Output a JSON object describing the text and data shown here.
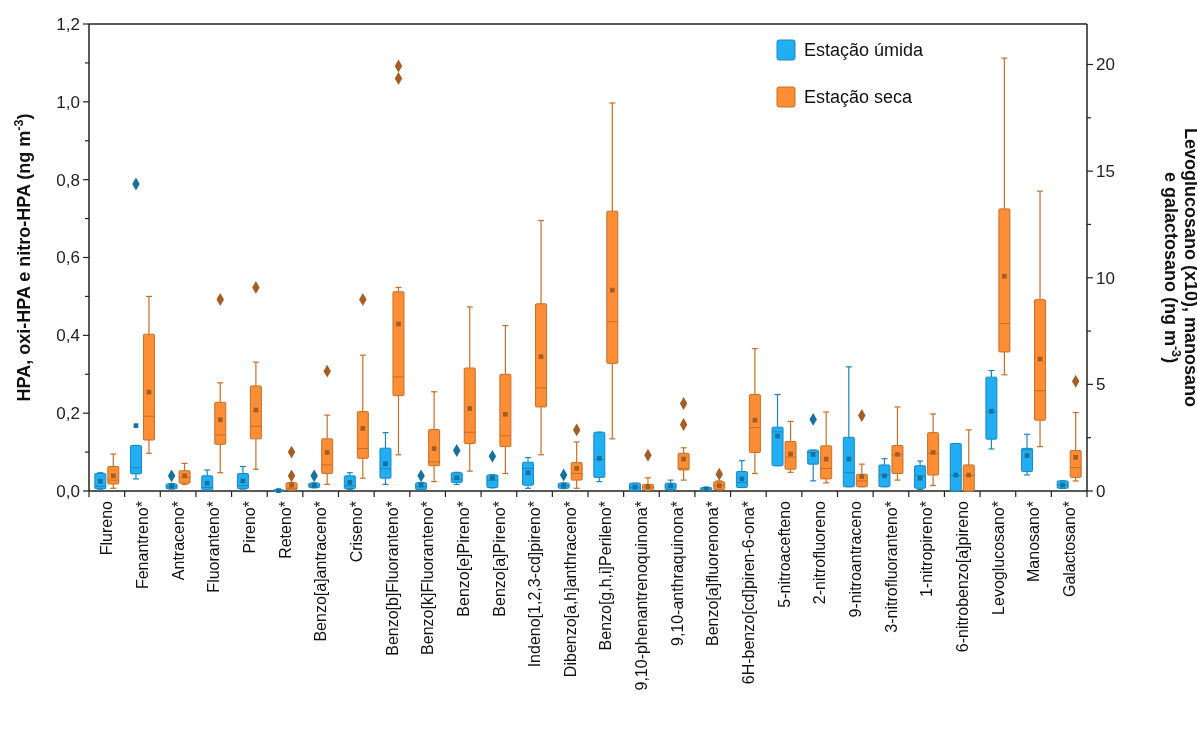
{
  "chart_data": {
    "type": "box",
    "ylabel": "HPA, oxi-HPA e nitro-HPA (ng m$^{-3}$)",
    "y2label": "Levoglucosano (x10), manosano e galactosano (ng m$^{-3}$)",
    "categories": [
      "Flureno",
      "Fenantreno*",
      "Antraceno*",
      "Fluoranteno*",
      "Pireno*",
      "Reteno*",
      "Benzo[a]antraceno*",
      "Criseno*",
      "Benzo[b]Fluoranteno*",
      "Benzo[k]Fluoranteno*",
      "Benzo[e]Pireno*",
      "Benzo[a]Pireno*",
      "Indeno[1,2,3-cd]pireno*",
      "Dibenzo[a,h]anthraceno*",
      "Benzo[g,h,i]Perileno*",
      "9,10-phenantrenoquinona*",
      "9,10-anthraquinona*",
      "Benzo[a]fluorenona*",
      "6H-benzo[cd]piren-6-ona*",
      "5-nitroacefteno",
      "2-nitrofluoreno",
      "9-nitroantraceno",
      "3-nitrofluoranteno*",
      "1-nitropireno*",
      "6-nitrobenzo[a]pireno",
      "Levoglucosano*",
      "Manosano*",
      "Galactosano*"
    ],
    "ylim": [
      0,
      1.2
    ],
    "yticks": [
      {
        "value": 0,
        "label": "0,0"
      },
      {
        "value": 0.1,
        "label": null
      },
      {
        "value": 0.2,
        "label": "0,2"
      },
      {
        "value": 0.3,
        "label": null
      },
      {
        "value": 0.4,
        "label": "0,4"
      },
      {
        "value": 0.5,
        "label": null
      },
      {
        "value": 0.6,
        "label": "0,6"
      },
      {
        "value": 0.7,
        "label": null
      },
      {
        "value": 0.8,
        "label": "0,8"
      },
      {
        "value": 0.9,
        "label": null
      },
      {
        "value": 1.0,
        "label": "1,0"
      },
      {
        "value": 1.1,
        "label": null
      },
      {
        "value": 1.2,
        "label": "1,2"
      }
    ],
    "y2lim": [
      0,
      21.9
    ],
    "y2ticks": [
      0,
      {
        "value": 2.5,
        "label": null
      },
      5,
      {
        "value": 7.5,
        "label": null
      },
      10,
      {
        "value": 12.5,
        "label": null
      },
      15,
      {
        "value": 17.5,
        "label": null
      },
      20
    ],
    "legend": "top right",
    "marker": "square",
    "series": [
      {
        "name": "Estação úmida",
        "color": "#22aef2",
        "boxes": [
          {
            "low": 0.003,
            "q1": 0.006,
            "median": 0.012,
            "q3": 0.045,
            "high": 0.047,
            "mean": 0.025
          },
          {
            "low": 0.031,
            "q1": 0.044,
            "median": 0.06,
            "q3": 0.117,
            "high": 0.117,
            "mean": 0.168,
            "outliers": [
              0.789
            ]
          },
          {
            "low": 0.005,
            "q1": 0.006,
            "median": 0.011,
            "q3": 0.018,
            "high": 0.019,
            "mean": 0.013,
            "outliers": [
              0.039
            ]
          },
          {
            "low": 0.002,
            "q1": 0.003,
            "median": 0.009,
            "q3": 0.039,
            "high": 0.054,
            "mean": 0.02
          },
          {
            "low": 0.005,
            "q1": 0.006,
            "median": 0.014,
            "q3": 0.045,
            "high": 0.063,
            "mean": 0.026
          },
          {
            "low": 0,
            "q1": 0,
            "median": 0.001,
            "q3": 0.003,
            "high": 0.004,
            "mean": 0.001
          },
          {
            "low": 0.008,
            "q1": 0.009,
            "median": 0.014,
            "q3": 0.02,
            "high": 0.021,
            "mean": 0.014,
            "outliers": [
              0.039
            ]
          },
          {
            "low": 0.004,
            "q1": 0.006,
            "median": 0.013,
            "q3": 0.039,
            "high": 0.047,
            "mean": 0.022
          },
          {
            "low": 0.017,
            "q1": 0.033,
            "median": 0.057,
            "q3": 0.11,
            "high": 0.15,
            "mean": 0.07
          },
          {
            "low": 0.003,
            "q1": 0.004,
            "median": 0.011,
            "q3": 0.021,
            "high": 0.022,
            "mean": 0.015,
            "outliers": [
              0.039
            ]
          },
          {
            "low": 0.017,
            "q1": 0.022,
            "median": 0.031,
            "q3": 0.047,
            "high": 0.048,
            "mean": 0.034,
            "outliers": [
              0.104
            ]
          },
          {
            "low": 0.008,
            "q1": 0.009,
            "median": 0.028,
            "q3": 0.041,
            "high": 0.042,
            "mean": 0.033,
            "outliers": [
              0.089
            ]
          },
          {
            "low": 0.007,
            "q1": 0.015,
            "median": 0.058,
            "q3": 0.074,
            "high": 0.086,
            "mean": 0.047
          },
          {
            "low": 0.006,
            "q1": 0.007,
            "median": 0.014,
            "q3": 0.02,
            "high": 0.021,
            "mean": 0.014,
            "outliers": [
              0.041
            ]
          },
          {
            "low": 0.024,
            "q1": 0.035,
            "median": 0.081,
            "q3": 0.151,
            "high": 0.151,
            "mean": 0.084
          },
          {
            "low": 0,
            "q1": 0.001,
            "median": 0.01,
            "q3": 0.02,
            "high": 0.02,
            "mean": 0.01
          },
          {
            "low": 0.002,
            "q1": 0.004,
            "median": 0.011,
            "q3": 0.02,
            "high": 0.028,
            "mean": 0.013
          },
          {
            "low": 0.001,
            "q1": 0.001,
            "median": 0.005,
            "q3": 0.009,
            "high": 0.01,
            "mean": 0.005
          },
          {
            "low": 0.009,
            "q1": 0.009,
            "median": 0.022,
            "q3": 0.05,
            "high": 0.078,
            "mean": 0.031
          },
          {
            "low": 0.065,
            "q1": 0.065,
            "median": 0.152,
            "q3": 0.164,
            "high": 0.248,
            "mean": 0.141
          },
          {
            "low": 0.026,
            "q1": 0.069,
            "median": 0.099,
            "q3": 0.105,
            "high": 0.105,
            "mean": 0.094,
            "outliers": [
              0.184
            ]
          },
          {
            "low": 0.011,
            "q1": 0.011,
            "median": 0.047,
            "q3": 0.138,
            "high": 0.319,
            "mean": 0.082
          },
          {
            "low": 0.011,
            "q1": 0.011,
            "median": 0.041,
            "q3": 0.067,
            "high": 0.083,
            "mean": 0.039
          },
          {
            "low": 0.004,
            "q1": 0.007,
            "median": 0.039,
            "q3": 0.065,
            "high": 0.077,
            "mean": 0.033
          },
          {
            "low": 0,
            "q1": 0,
            "median": 0.04,
            "q3": 0.122,
            "high": 0.122,
            "mean": 0.041
          },
          null,
          null,
          null
        ]
      },
      {
        "name": "Estação seca",
        "color": "#fd8e35",
        "boxes": [
          {
            "low": 0.007,
            "q1": 0.018,
            "median": 0.028,
            "q3": 0.063,
            "high": 0.095,
            "mean": 0.039
          },
          {
            "low": 0.097,
            "q1": 0.131,
            "median": 0.192,
            "q3": 0.403,
            "high": 0.5,
            "mean": 0.254
          },
          {
            "low": 0.017,
            "q1": 0.02,
            "median": 0.035,
            "q3": 0.052,
            "high": 0.071,
            "mean": 0.039
          },
          {
            "low": 0.047,
            "q1": 0.12,
            "median": 0.144,
            "q3": 0.228,
            "high": 0.278,
            "mean": 0.183,
            "outliers": [
              0.492
            ]
          },
          {
            "low": 0.056,
            "q1": 0.134,
            "median": 0.166,
            "q3": 0.27,
            "high": 0.331,
            "mean": 0.208,
            "outliers": [
              0.523
            ]
          },
          {
            "low": 0.001,
            "q1": 0.003,
            "median": 0.007,
            "q3": 0.021,
            "high": 0.022,
            "mean": 0.015,
            "outliers": [
              0.039,
              0.1
            ]
          },
          {
            "low": 0.017,
            "q1": 0.045,
            "median": 0.067,
            "q3": 0.134,
            "high": 0.195,
            "mean": 0.099,
            "outliers": [
              0.308
            ]
          },
          {
            "low": 0.033,
            "q1": 0.084,
            "median": 0.109,
            "q3": 0.204,
            "high": 0.349,
            "mean": 0.161,
            "outliers": [
              0.492
            ]
          },
          {
            "low": 0.093,
            "q1": 0.245,
            "median": 0.293,
            "q3": 0.512,
            "high": 0.523,
            "mean": 0.429,
            "outliers": [
              1.06,
              1.092
            ]
          },
          {
            "low": 0.024,
            "q1": 0.065,
            "median": 0.075,
            "q3": 0.158,
            "high": 0.255,
            "mean": 0.109
          },
          {
            "low": 0.051,
            "q1": 0.122,
            "median": 0.151,
            "q3": 0.316,
            "high": 0.473,
            "mean": 0.212
          },
          {
            "low": 0.045,
            "q1": 0.114,
            "median": 0.142,
            "q3": 0.3,
            "high": 0.425,
            "mean": 0.197
          },
          {
            "low": 0.093,
            "q1": 0.216,
            "median": 0.265,
            "q3": 0.481,
            "high": 0.695,
            "mean": 0.345
          },
          {
            "low": 0.007,
            "q1": 0.028,
            "median": 0.045,
            "q3": 0.073,
            "high": 0.126,
            "mean": 0.058,
            "outliers": [
              0.157
            ]
          },
          {
            "low": 0.134,
            "q1": 0.328,
            "median": 0.435,
            "q3": 0.719,
            "high": 0.997,
            "mean": 0.516
          },
          {
            "low": 0.001,
            "q1": 0.003,
            "median": 0.01,
            "q3": 0.017,
            "high": 0.034,
            "mean": 0.011,
            "outliers": [
              0.092
            ]
          },
          {
            "low": 0.028,
            "q1": 0.054,
            "median": 0.058,
            "q3": 0.097,
            "high": 0.111,
            "mean": 0.082,
            "outliers": [
              0.171,
              0.225
            ]
          },
          {
            "low": 0.002,
            "q1": 0.004,
            "median": 0.014,
            "q3": 0.024,
            "high": 0.026,
            "mean": 0.014,
            "outliers": [
              0.043
            ]
          },
          {
            "low": 0.045,
            "q1": 0.099,
            "median": 0.163,
            "q3": 0.248,
            "high": 0.366,
            "mean": 0.182
          },
          {
            "low": 0.048,
            "q1": 0.056,
            "median": 0.087,
            "q3": 0.127,
            "high": 0.179,
            "mean": 0.095
          },
          {
            "low": 0.021,
            "q1": 0.031,
            "median": 0.058,
            "q3": 0.116,
            "high": 0.203,
            "mean": 0.082
          },
          {
            "low": 0.011,
            "q1": 0.011,
            "median": 0.026,
            "q3": 0.043,
            "high": 0.069,
            "mean": 0.037,
            "outliers": [
              0.194
            ]
          },
          {
            "low": 0.028,
            "q1": 0.045,
            "median": 0.093,
            "q3": 0.117,
            "high": 0.216,
            "mean": 0.094
          },
          {
            "low": 0.014,
            "q1": 0.041,
            "median": 0.097,
            "q3": 0.15,
            "high": 0.198,
            "mean": 0.099
          },
          {
            "low": 0,
            "q1": 0,
            "median": 0.04,
            "q3": 0.067,
            "high": 0.157,
            "mean": 0.041
          },
          null,
          null,
          null
        ]
      },
      {
        "color": "#22aef2",
        "axis": "y2",
        "boxes": [
          null,
          null,
          null,
          null,
          null,
          null,
          null,
          null,
          null,
          null,
          null,
          null,
          null,
          null,
          null,
          null,
          null,
          null,
          null,
          null,
          null,
          null,
          null,
          null,
          null,
          {
            "low": 1.97,
            "q1": 2.43,
            "median": 3.7,
            "q3": 5.34,
            "high": 5.65,
            "mean": 3.74
          },
          {
            "low": 0.75,
            "q1": 0.91,
            "median": 1.93,
            "q3": 2.0,
            "high": 2.66,
            "mean": 1.66
          },
          {
            "low": 0.12,
            "q1": 0.13,
            "median": 0.28,
            "q3": 0.47,
            "high": 0.48,
            "mean": 0.28
          }
        ]
      },
      {
        "color": "#fd8e35",
        "axis": "y2",
        "boxes": [
          null,
          null,
          null,
          null,
          null,
          null,
          null,
          null,
          null,
          null,
          null,
          null,
          null,
          null,
          null,
          null,
          null,
          null,
          null,
          null,
          null,
          null,
          null,
          null,
          null,
          {
            "low": 5.45,
            "q1": 6.52,
            "median": 7.85,
            "q3": 13.23,
            "high": 20.3,
            "mean": 10.07
          },
          {
            "low": 2.08,
            "q1": 3.32,
            "median": 4.7,
            "q3": 8.97,
            "high": 14.06,
            "mean": 6.19
          },
          {
            "low": 0.47,
            "q1": 0.64,
            "median": 1.1,
            "q3": 1.9,
            "high": 3.68,
            "mean": 1.58,
            "outliers": [
              5.15
            ]
          }
        ]
      }
    ]
  }
}
